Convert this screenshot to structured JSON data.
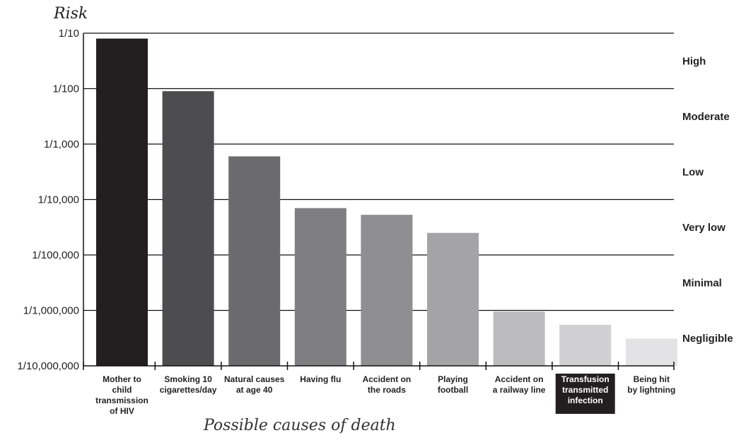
{
  "chart_data": {
    "type": "bar",
    "ylabel": "Risk",
    "xlabel": "Possible causes of death",
    "y_scale": "log",
    "ylim": [
      1e-07,
      0.1
    ],
    "ytick_labels": [
      "1/10",
      "1/100",
      "1/1,000",
      "1/10,000",
      "1/100,000",
      "1/1,000,000",
      "1/10,000,000"
    ],
    "ytick_values": [
      0.1,
      0.01,
      0.001,
      0.0001,
      1e-05,
      1e-06,
      1e-07
    ],
    "categories": [
      [
        "Mother to",
        "child",
        "transmission",
        "of HIV"
      ],
      [
        "Smoking 10",
        "cigarettes/day"
      ],
      [
        "Natural causes",
        "at age 40"
      ],
      [
        "Having flu"
      ],
      [
        "Accident on",
        "the roads"
      ],
      [
        "Playing",
        "football"
      ],
      [
        "Accident on",
        "a railway line"
      ],
      [
        "Transfusion",
        "transmitted",
        "infection"
      ],
      [
        "Being hit",
        "by lightning"
      ]
    ],
    "values": [
      0.08,
      0.009,
      0.0006,
      7e-05,
      5.3e-05,
      2.5e-05,
      9.5e-07,
      5.5e-07,
      3.1e-07
    ],
    "bar_colors": [
      "#231f20",
      "#4d4d4f",
      "#6b6b6d",
      "#7f7f81",
      "#8f8f91",
      "#a4a4a6",
      "#bcbcbe",
      "#d0d0d2",
      "#e3e3e5"
    ],
    "highlighted_category_index": 7,
    "risk_bands": [
      "High",
      "Moderate",
      "Low",
      "Very low",
      "Minimal",
      "Negligible"
    ]
  }
}
